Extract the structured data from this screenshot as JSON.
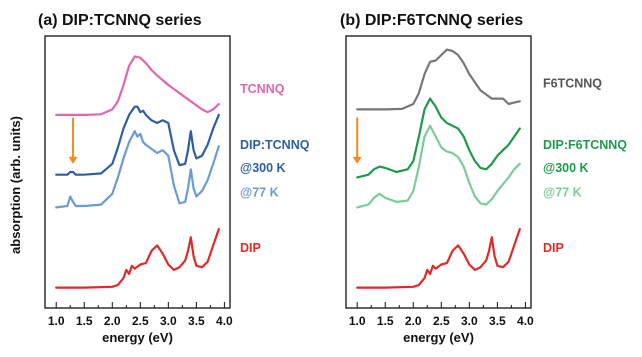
{
  "ylabel": "absorption (arb. units)",
  "chart_data": [
    {
      "type": "line",
      "title": "(a) DIP:TCNNQ series",
      "xlabel": "energy (eV)",
      "xlim": [
        0.8,
        4.1
      ],
      "xticks": [
        "1.0",
        "1.5",
        "2.0",
        "2.5",
        "3.0",
        "3.5",
        "4.0"
      ],
      "xtick_values": [
        1.0,
        1.5,
        2.0,
        2.5,
        3.0,
        3.5,
        4.0
      ],
      "ylim": [
        0,
        10
      ],
      "grid": false,
      "annotation": {
        "type": "arrow",
        "x": 1.3,
        "color": "#f08a24"
      },
      "labels": [
        {
          "text": "TCNNQ",
          "color": "#e066ad",
          "y": 7.9
        },
        {
          "text": "DIP:TCNNQ",
          "color": "#2e5fa3",
          "y": 5.85
        },
        {
          "text": "@300 K",
          "color": "#2e5fa3",
          "y": 5.0
        },
        {
          "text": "@77 K",
          "color": "#6b9bd2",
          "y": 4.1
        },
        {
          "text": "DIP",
          "color": "#e02a2a",
          "y": 2.05
        }
      ],
      "series": [
        {
          "color": "#e066ad",
          "x": [
            1.0,
            1.5,
            1.8,
            2.0,
            2.1,
            2.2,
            2.3,
            2.4,
            2.5,
            2.6,
            2.7,
            2.8,
            3.0,
            3.2,
            3.4,
            3.6,
            3.7,
            3.8,
            3.9
          ],
          "y": [
            7.1,
            7.1,
            7.12,
            7.3,
            7.6,
            8.2,
            8.9,
            9.25,
            9.2,
            9.0,
            8.75,
            8.55,
            8.2,
            7.9,
            7.6,
            7.3,
            7.2,
            7.3,
            7.5
          ]
        },
        {
          "color": "#2e5fa3",
          "x": [
            1.0,
            1.2,
            1.25,
            1.3,
            1.35,
            1.5,
            1.8,
            2.0,
            2.1,
            2.2,
            2.3,
            2.4,
            2.45,
            2.5,
            2.55,
            2.6,
            2.7,
            2.8,
            2.9,
            3.0,
            3.1,
            3.2,
            3.3,
            3.35,
            3.4,
            3.45,
            3.5,
            3.6,
            3.7,
            3.8,
            3.9
          ],
          "y": [
            4.9,
            4.9,
            5.0,
            5.0,
            4.9,
            4.9,
            4.95,
            5.3,
            5.9,
            6.6,
            7.1,
            7.4,
            7.4,
            7.2,
            7.25,
            7.1,
            6.9,
            6.8,
            6.9,
            6.8,
            5.8,
            5.25,
            5.3,
            5.8,
            6.5,
            5.8,
            5.5,
            5.6,
            6.0,
            6.6,
            7.1
          ]
        },
        {
          "color": "#6b9bd2",
          "x": [
            1.0,
            1.2,
            1.25,
            1.3,
            1.35,
            1.5,
            1.8,
            2.0,
            2.1,
            2.2,
            2.3,
            2.4,
            2.45,
            2.5,
            2.55,
            2.6,
            2.7,
            2.8,
            2.9,
            3.0,
            3.1,
            3.2,
            3.3,
            3.35,
            3.4,
            3.45,
            3.5,
            3.6,
            3.7,
            3.8,
            3.9
          ],
          "y": [
            3.7,
            3.75,
            4.1,
            3.9,
            3.75,
            3.75,
            3.8,
            4.2,
            4.8,
            5.5,
            6.1,
            6.5,
            6.3,
            6.4,
            6.1,
            6.0,
            5.85,
            5.7,
            5.8,
            5.6,
            4.5,
            3.85,
            3.9,
            4.4,
            5.1,
            4.4,
            4.1,
            4.3,
            4.7,
            5.3,
            5.95
          ]
        },
        {
          "color": "#e02a2a",
          "x": [
            1.0,
            1.5,
            2.0,
            2.1,
            2.2,
            2.25,
            2.3,
            2.35,
            2.4,
            2.5,
            2.6,
            2.7,
            2.8,
            2.9,
            3.0,
            3.1,
            3.2,
            3.3,
            3.35,
            3.4,
            3.45,
            3.5,
            3.6,
            3.7,
            3.8,
            3.9
          ],
          "y": [
            0.75,
            0.75,
            0.78,
            0.85,
            1.1,
            1.4,
            1.25,
            1.55,
            1.45,
            1.6,
            1.65,
            2.1,
            2.3,
            2.0,
            1.6,
            1.4,
            1.5,
            1.75,
            2.1,
            2.6,
            1.9,
            1.55,
            1.5,
            1.7,
            2.3,
            2.9
          ]
        }
      ]
    },
    {
      "type": "line",
      "title": "(b) DIP:F6TCNNQ series",
      "xlabel": "energy (eV)",
      "xlim": [
        0.8,
        4.1
      ],
      "xticks": [
        "1.0",
        "1.5",
        "2.0",
        "2.5",
        "3.0",
        "3.5",
        "4.0"
      ],
      "xtick_values": [
        1.0,
        1.5,
        2.0,
        2.5,
        3.0,
        3.5,
        4.0
      ],
      "ylim": [
        0,
        10
      ],
      "grid": false,
      "annotation": {
        "type": "arrow",
        "x": 1.0,
        "color": "#f08a24"
      },
      "labels": [
        {
          "text": "F6TCNNQ",
          "color": "#555555",
          "y": 8.1
        },
        {
          "text": "DIP:F6TCNNQ",
          "color": "#1e9a4e",
          "y": 5.85
        },
        {
          "text": "@300 K",
          "color": "#1e9a4e",
          "y": 5.0
        },
        {
          "text": "@77 K",
          "color": "#7ccc9a",
          "y": 4.1
        },
        {
          "text": "DIP",
          "color": "#e02a2a",
          "y": 2.05
        }
      ],
      "series": [
        {
          "color": "#777777",
          "x": [
            1.0,
            1.5,
            1.8,
            2.0,
            2.1,
            2.2,
            2.3,
            2.4,
            2.5,
            2.6,
            2.7,
            2.8,
            2.9,
            3.0,
            3.2,
            3.4,
            3.6,
            3.7,
            3.8,
            3.9
          ],
          "y": [
            7.3,
            7.3,
            7.32,
            7.5,
            7.9,
            8.6,
            9.05,
            9.1,
            9.3,
            9.5,
            9.45,
            9.3,
            9.0,
            8.6,
            8.0,
            7.7,
            7.7,
            7.5,
            7.55,
            7.6
          ]
        },
        {
          "color": "#1e9a4e",
          "x": [
            1.0,
            1.2,
            1.3,
            1.4,
            1.5,
            1.7,
            1.9,
            2.0,
            2.1,
            2.2,
            2.3,
            2.4,
            2.5,
            2.6,
            2.7,
            2.8,
            2.9,
            3.0,
            3.1,
            3.2,
            3.3,
            3.4,
            3.5,
            3.6,
            3.7,
            3.8,
            3.9
          ],
          "y": [
            4.8,
            4.9,
            5.1,
            5.2,
            5.15,
            5.0,
            5.1,
            5.4,
            6.3,
            7.3,
            7.7,
            7.4,
            7.0,
            6.8,
            6.7,
            6.6,
            6.3,
            5.8,
            5.4,
            5.15,
            5.1,
            5.3,
            5.6,
            5.8,
            6.0,
            6.3,
            6.6
          ]
        },
        {
          "color": "#7ccc9a",
          "x": [
            1.0,
            1.2,
            1.3,
            1.4,
            1.5,
            1.7,
            1.9,
            2.0,
            2.1,
            2.2,
            2.3,
            2.4,
            2.5,
            2.6,
            2.7,
            2.8,
            2.9,
            3.0,
            3.1,
            3.2,
            3.3,
            3.4,
            3.5,
            3.6,
            3.7,
            3.8,
            3.9
          ],
          "y": [
            3.7,
            3.8,
            4.05,
            4.2,
            4.05,
            3.9,
            3.95,
            4.3,
            5.2,
            6.3,
            6.7,
            6.3,
            5.9,
            5.75,
            5.7,
            5.55,
            5.2,
            4.6,
            4.1,
            3.85,
            3.8,
            4.0,
            4.3,
            4.55,
            4.8,
            5.1,
            5.3
          ]
        },
        {
          "color": "#e02a2a",
          "x": [
            1.0,
            1.5,
            2.0,
            2.1,
            2.2,
            2.25,
            2.3,
            2.35,
            2.4,
            2.5,
            2.6,
            2.7,
            2.8,
            2.9,
            3.0,
            3.1,
            3.2,
            3.3,
            3.35,
            3.4,
            3.45,
            3.5,
            3.6,
            3.7,
            3.8,
            3.9
          ],
          "y": [
            0.75,
            0.75,
            0.78,
            0.85,
            1.1,
            1.4,
            1.25,
            1.55,
            1.45,
            1.6,
            1.65,
            2.1,
            2.3,
            2.0,
            1.6,
            1.4,
            1.5,
            1.75,
            2.1,
            2.6,
            1.9,
            1.55,
            1.5,
            1.7,
            2.3,
            2.9
          ]
        }
      ]
    }
  ]
}
